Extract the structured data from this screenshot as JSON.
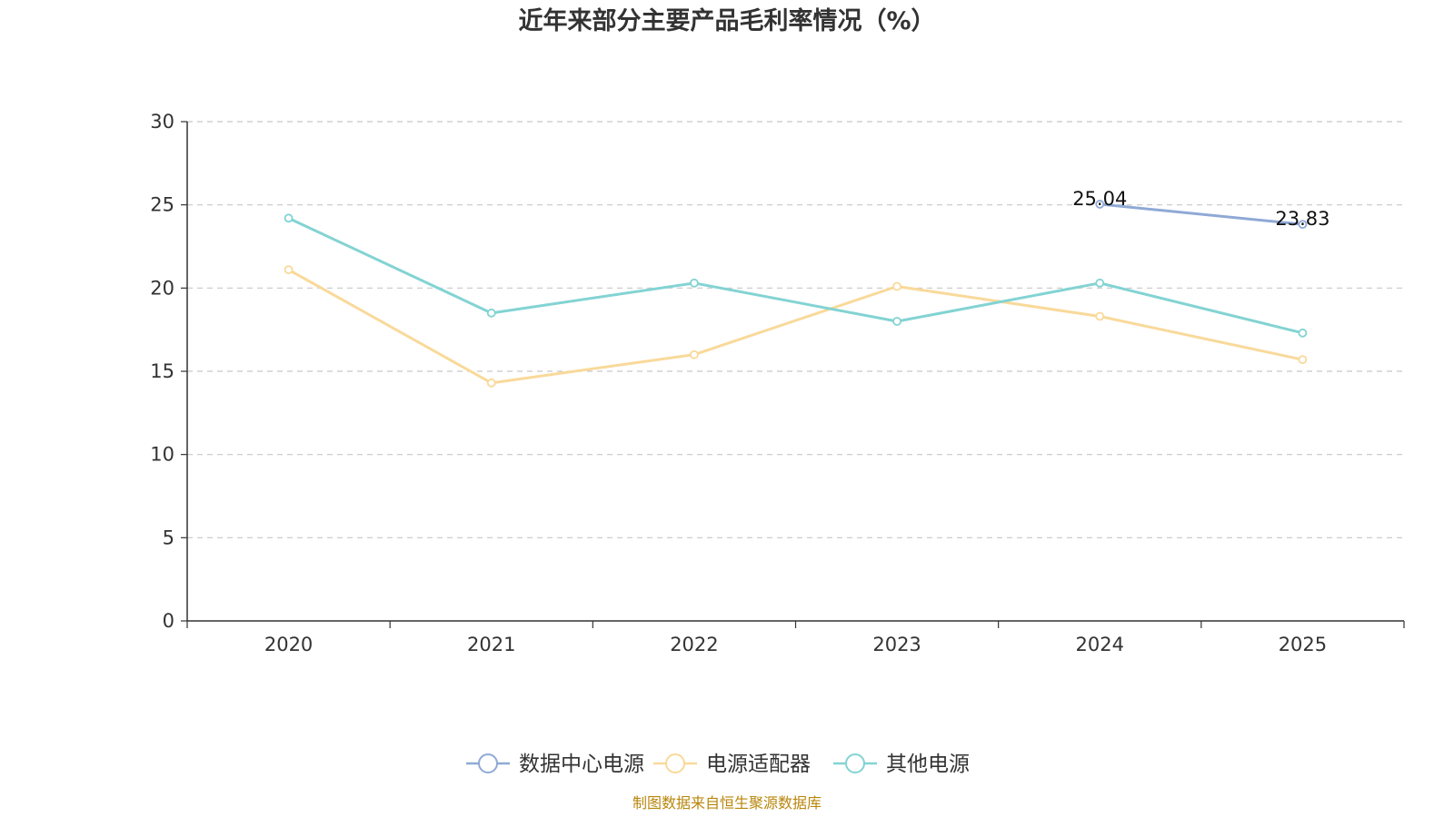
{
  "chart_data": {
    "type": "line",
    "title": "近年来部分主要产品毛利率情况（%）",
    "categories": [
      "2020",
      "2021",
      "2022",
      "2023",
      "2024",
      "2025"
    ],
    "ylim": [
      0,
      30
    ],
    "yticks": [
      0,
      5,
      10,
      15,
      20,
      25,
      30
    ],
    "grid": true,
    "legend_position": "bottom",
    "series": [
      {
        "name": "数据中心电源",
        "color": "#8fa9d6",
        "values": [
          null,
          null,
          null,
          null,
          25.04,
          23.83
        ],
        "labels": [
          "",
          "",
          "",
          "",
          "25.04",
          "23.83"
        ]
      },
      {
        "name": "电源适配器",
        "color": "#f9d99a",
        "values": [
          21.1,
          14.3,
          16.0,
          20.1,
          18.3,
          15.7
        ],
        "labels": [
          "",
          "",
          "",
          "",
          "",
          ""
        ]
      },
      {
        "name": "其他电源",
        "color": "#83d3d3",
        "values": [
          24.2,
          18.5,
          20.3,
          18.0,
          20.3,
          17.3
        ],
        "labels": [
          "",
          "",
          "",
          "",
          "",
          ""
        ]
      }
    ]
  },
  "source": "制图数据来自恒生聚源数据库"
}
